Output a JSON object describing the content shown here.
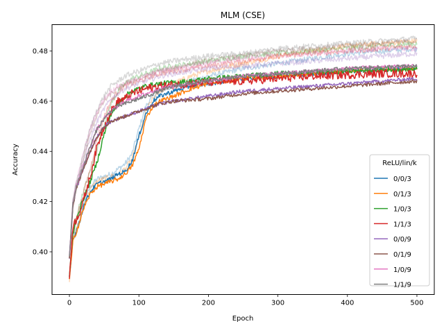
{
  "chart_data": {
    "type": "line",
    "title": "MLM (CSE)",
    "xlabel": "Epoch",
    "ylabel": "Accuracy",
    "xlim": [
      -25,
      525
    ],
    "ylim": [
      0.383,
      0.4905
    ],
    "xticks": [
      0,
      100,
      200,
      300,
      400,
      500
    ],
    "yticks": [
      0.4,
      0.42,
      0.44,
      0.46,
      0.48
    ],
    "ytick_labels": [
      "0.40",
      "0.42",
      "0.44",
      "0.46",
      "0.48"
    ],
    "legend": {
      "title": "ReLU/lin/k",
      "placement": "lower right"
    },
    "grid": false,
    "x": [
      0,
      5,
      10,
      15,
      20,
      30,
      40,
      50,
      60,
      70,
      80,
      90,
      100,
      110,
      120,
      130,
      150,
      175,
      200,
      250,
      300,
      350,
      400,
      450,
      500
    ],
    "series": [
      {
        "name": "0/0/3",
        "color": "#1f77b4",
        "noise": 0.0009,
        "values": [
          0.39,
          0.405,
          0.408,
          0.412,
          0.418,
          0.424,
          0.427,
          0.428,
          0.429,
          0.431,
          0.432,
          0.436,
          0.446,
          0.455,
          0.46,
          0.462,
          0.464,
          0.466,
          0.467,
          0.469,
          0.47,
          0.471,
          0.472,
          0.4725,
          0.473
        ]
      },
      {
        "name": "0/1/3",
        "color": "#ff7f0e",
        "noise": 0.0009,
        "values": [
          0.389,
          0.404,
          0.408,
          0.412,
          0.417,
          0.423,
          0.426,
          0.427,
          0.428,
          0.429,
          0.431,
          0.434,
          0.441,
          0.453,
          0.458,
          0.46,
          0.462,
          0.465,
          0.467,
          0.469,
          0.47,
          0.471,
          0.472,
          0.4725,
          0.473
        ]
      },
      {
        "name": "1/0/3",
        "color": "#2ca02c",
        "noise": 0.001,
        "values": [
          0.39,
          0.407,
          0.413,
          0.417,
          0.421,
          0.428,
          0.436,
          0.447,
          0.455,
          0.459,
          0.462,
          0.464,
          0.465,
          0.466,
          0.4665,
          0.467,
          0.4675,
          0.468,
          0.469,
          0.47,
          0.471,
          0.4715,
          0.472,
          0.4725,
          0.473
        ]
      },
      {
        "name": "1/1/3",
        "color": "#d62728",
        "noise": 0.0016,
        "values": [
          0.39,
          0.41,
          0.413,
          0.416,
          0.42,
          0.43,
          0.442,
          0.45,
          0.456,
          0.46,
          0.461,
          0.463,
          0.464,
          0.465,
          0.4655,
          0.466,
          0.4665,
          0.467,
          0.4675,
          0.468,
          0.469,
          0.47,
          0.4705,
          0.471,
          0.471
        ]
      },
      {
        "name": "0/0/9",
        "color": "#9467bd",
        "noise": 0.0007,
        "values": [
          0.398,
          0.418,
          0.425,
          0.429,
          0.433,
          0.44,
          0.446,
          0.45,
          0.452,
          0.453,
          0.454,
          0.455,
          0.456,
          0.457,
          0.458,
          0.459,
          0.46,
          0.461,
          0.462,
          0.464,
          0.465,
          0.466,
          0.467,
          0.468,
          0.469
        ]
      },
      {
        "name": "0/1/9",
        "color": "#8c564b",
        "noise": 0.0007,
        "values": [
          0.398,
          0.418,
          0.425,
          0.429,
          0.433,
          0.44,
          0.446,
          0.45,
          0.452,
          0.453,
          0.454,
          0.455,
          0.456,
          0.457,
          0.458,
          0.459,
          0.46,
          0.4605,
          0.461,
          0.463,
          0.464,
          0.465,
          0.466,
          0.467,
          0.468
        ]
      },
      {
        "name": "1/0/9",
        "color": "#e377c2",
        "noise": 0.0008,
        "values": [
          0.398,
          0.419,
          0.426,
          0.43,
          0.434,
          0.442,
          0.449,
          0.453,
          0.456,
          0.458,
          0.46,
          0.461,
          0.462,
          0.463,
          0.464,
          0.465,
          0.466,
          0.467,
          0.468,
          0.47,
          0.471,
          0.472,
          0.473,
          0.4735,
          0.474
        ]
      },
      {
        "name": "1/1/9",
        "color": "#7f7f7f",
        "noise": 0.0008,
        "values": [
          0.398,
          0.419,
          0.426,
          0.43,
          0.434,
          0.442,
          0.449,
          0.453,
          0.456,
          0.458,
          0.459,
          0.46,
          0.461,
          0.462,
          0.463,
          0.464,
          0.466,
          0.467,
          0.468,
          0.47,
          0.471,
          0.472,
          0.473,
          0.4735,
          0.474
        ]
      }
    ],
    "faint_series": [
      {
        "color": "#1f77b4",
        "values": [
          0.39,
          0.405,
          0.409,
          0.413,
          0.419,
          0.426,
          0.429,
          0.43,
          0.431,
          0.433,
          0.435,
          0.439,
          0.449,
          0.458,
          0.462,
          0.464,
          0.466,
          0.468,
          0.47,
          0.473,
          0.475,
          0.477,
          0.479,
          0.48,
          0.481
        ]
      },
      {
        "color": "#ff7f0e",
        "values": [
          0.389,
          0.404,
          0.409,
          0.413,
          0.418,
          0.425,
          0.428,
          0.429,
          0.43,
          0.431,
          0.433,
          0.437,
          0.445,
          0.456,
          0.461,
          0.464,
          0.467,
          0.47,
          0.472,
          0.475,
          0.478,
          0.48,
          0.482,
          0.483,
          0.484
        ]
      },
      {
        "color": "#2ca02c",
        "values": [
          0.39,
          0.408,
          0.414,
          0.419,
          0.424,
          0.432,
          0.441,
          0.451,
          0.459,
          0.464,
          0.467,
          0.469,
          0.47,
          0.471,
          0.472,
          0.473,
          0.474,
          0.475,
          0.476,
          0.478,
          0.479,
          0.48,
          0.481,
          0.482,
          0.483
        ]
      },
      {
        "color": "#d62728",
        "values": [
          0.39,
          0.41,
          0.414,
          0.418,
          0.423,
          0.433,
          0.445,
          0.454,
          0.46,
          0.464,
          0.466,
          0.467,
          0.468,
          0.469,
          0.47,
          0.471,
          0.472,
          0.473,
          0.474,
          0.476,
          0.478,
          0.479,
          0.48,
          0.481,
          0.482
        ]
      },
      {
        "color": "#9467bd",
        "values": [
          0.398,
          0.419,
          0.426,
          0.431,
          0.436,
          0.445,
          0.452,
          0.457,
          0.461,
          0.463,
          0.465,
          0.466,
          0.467,
          0.468,
          0.469,
          0.47,
          0.471,
          0.472,
          0.473,
          0.474,
          0.475,
          0.476,
          0.477,
          0.478,
          0.479
        ]
      },
      {
        "color": "#8c564b",
        "values": [
          0.398,
          0.419,
          0.426,
          0.431,
          0.437,
          0.447,
          0.455,
          0.46,
          0.463,
          0.465,
          0.467,
          0.468,
          0.469,
          0.47,
          0.471,
          0.472,
          0.473,
          0.475,
          0.476,
          0.478,
          0.48,
          0.481,
          0.482,
          0.483,
          0.484
        ]
      },
      {
        "color": "#e377c2",
        "values": [
          0.398,
          0.42,
          0.428,
          0.433,
          0.439,
          0.449,
          0.456,
          0.461,
          0.464,
          0.466,
          0.467,
          0.468,
          0.469,
          0.47,
          0.471,
          0.472,
          0.473,
          0.474,
          0.475,
          0.477,
          0.478,
          0.479,
          0.48,
          0.481,
          0.481
        ]
      },
      {
        "color": "#7f7f7f",
        "values": [
          0.398,
          0.42,
          0.428,
          0.433,
          0.439,
          0.449,
          0.457,
          0.462,
          0.466,
          0.468,
          0.47,
          0.471,
          0.472,
          0.473,
          0.474,
          0.475,
          0.476,
          0.477,
          0.478,
          0.479,
          0.481,
          0.482,
          0.483,
          0.484,
          0.485
        ]
      }
    ]
  }
}
